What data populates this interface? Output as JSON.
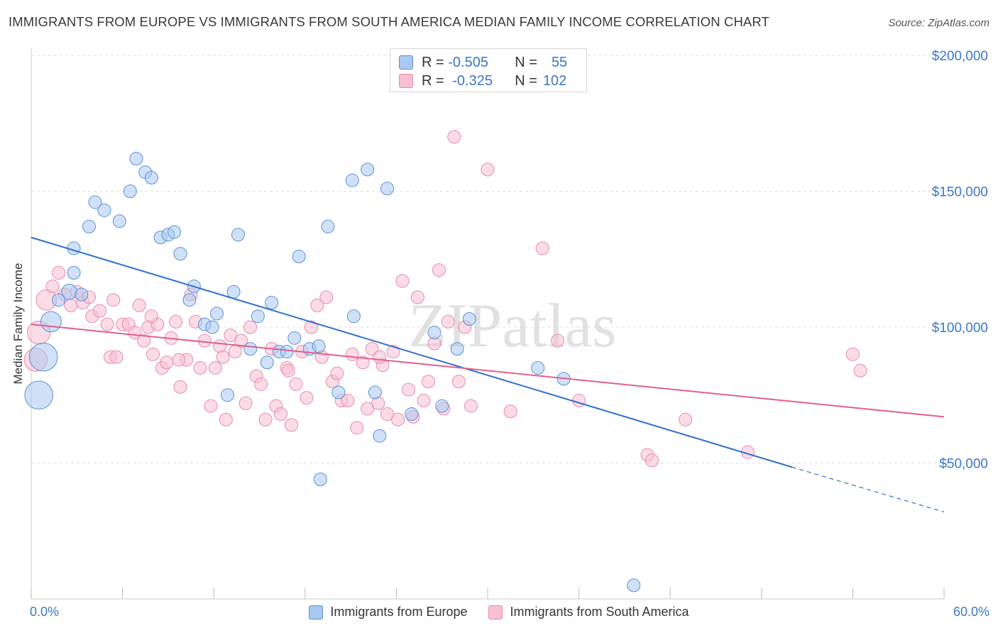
{
  "title": "IMMIGRANTS FROM EUROPE VS IMMIGRANTS FROM SOUTH AMERICA MEDIAN FAMILY INCOME CORRELATION CHART",
  "source": "Source: ZipAtlas.com",
  "watermark": "ZIPatlas",
  "stats": [
    {
      "r_label": "R =",
      "r_value": "-0.505",
      "n_label": "N =",
      "n_value": "55"
    },
    {
      "r_label": "R =",
      "r_value": "-0.325",
      "n_label": "N =",
      "n_value": "102"
    }
  ],
  "colors": {
    "europe_fill": "#aac8f0",
    "europe_stroke": "#5a90d8",
    "europe_line": "#2f6fd0",
    "southamerica_fill": "#f8c0d2",
    "southamerica_stroke": "#e88aa8",
    "southamerica_line": "#e0608e",
    "axis_text": "#3a78c8",
    "grid": "#e0e0e0"
  },
  "chart_data": {
    "type": "scatter",
    "title": "IMMIGRANTS FROM EUROPE VS IMMIGRANTS FROM SOUTH AMERICA MEDIAN FAMILY INCOME CORRELATION CHART",
    "xlabel": "",
    "ylabel": "Median Family Income",
    "xlim": [
      0,
      60
    ],
    "ylim": [
      0,
      210000
    ],
    "x_tick_labels": {
      "min": "0.0%",
      "max": "60.0%"
    },
    "y_ticks": [
      50000,
      100000,
      150000,
      200000
    ],
    "y_tick_labels": [
      "$50,000",
      "$100,000",
      "$150,000",
      "$200,000"
    ],
    "grid": "horizontal dashed",
    "legend_position": "bottom-center",
    "series": [
      {
        "name": "Immigrants from Europe",
        "trend": {
          "x": [
            0,
            50
          ],
          "y": [
            133000,
            48500
          ],
          "dashed_extension": {
            "x": [
              50,
              60
            ],
            "y": [
              48500,
              32000
            ]
          }
        },
        "points": [
          [
            0.5,
            75000,
            2.2
          ],
          [
            0.8,
            89000,
            2.2
          ],
          [
            1.3,
            102000,
            1.6
          ],
          [
            2.5,
            113000,
            1.2
          ],
          [
            2.8,
            120000,
            1.0
          ],
          [
            4.2,
            146000,
            1.0
          ],
          [
            4.8,
            143000,
            1.0
          ],
          [
            3.8,
            137000,
            1.0
          ],
          [
            2.8,
            129000,
            1.0
          ],
          [
            5.8,
            139000,
            1.0
          ],
          [
            6.5,
            150000,
            1.0
          ],
          [
            6.9,
            162000,
            1.0
          ],
          [
            7.5,
            157000,
            1.0
          ],
          [
            7.9,
            155000,
            1.0
          ],
          [
            8.5,
            133000,
            1.0
          ],
          [
            9.0,
            134000,
            1.0
          ],
          [
            9.4,
            135000,
            1.0
          ],
          [
            9.8,
            127000,
            1.0
          ],
          [
            10.7,
            115000,
            1.0
          ],
          [
            10.4,
            110000,
            1.0
          ],
          [
            11.4,
            101000,
            1.0
          ],
          [
            11.9,
            100000,
            1.0
          ],
          [
            12.2,
            105000,
            1.0
          ],
          [
            12.9,
            75000,
            1.0
          ],
          [
            13.3,
            113000,
            1.0
          ],
          [
            13.6,
            134000,
            1.0
          ],
          [
            14.4,
            92000,
            1.0
          ],
          [
            14.9,
            104000,
            1.0
          ],
          [
            15.5,
            87000,
            1.0
          ],
          [
            15.8,
            109000,
            1.0
          ],
          [
            16.3,
            91000,
            1.0
          ],
          [
            16.8,
            91000,
            1.0
          ],
          [
            17.3,
            96000,
            1.0
          ],
          [
            17.6,
            126000,
            1.0
          ],
          [
            18.3,
            92000,
            1.0
          ],
          [
            18.9,
            93000,
            1.0
          ],
          [
            19.5,
            137000,
            1.0
          ],
          [
            19.0,
            44000,
            1.0
          ],
          [
            20.2,
            76000,
            1.0
          ],
          [
            21.1,
            154000,
            1.0
          ],
          [
            21.2,
            104000,
            1.0
          ],
          [
            22.1,
            158000,
            1.0
          ],
          [
            22.6,
            76000,
            1.0
          ],
          [
            22.9,
            60000,
            1.0
          ],
          [
            23.4,
            151000,
            1.0
          ],
          [
            25.0,
            68000,
            1.0
          ],
          [
            26.5,
            98000,
            1.0
          ],
          [
            27.0,
            71000,
            1.0
          ],
          [
            28.0,
            92000,
            1.0
          ],
          [
            28.8,
            103000,
            1.0
          ],
          [
            33.3,
            85000,
            1.0
          ],
          [
            35.0,
            81000,
            1.0
          ],
          [
            39.6,
            5000,
            1.0
          ],
          [
            1.8,
            110000,
            1.0
          ],
          [
            3.3,
            112000,
            1.0
          ]
        ]
      },
      {
        "name": "Immigrants from South America",
        "trend": {
          "x": [
            0,
            60
          ],
          "y": [
            101000,
            67000
          ]
        },
        "points": [
          [
            0.3,
            88000,
            1.8
          ],
          [
            0.5,
            98000,
            1.8
          ],
          [
            1.0,
            110000,
            1.6
          ],
          [
            1.4,
            115000,
            1.0
          ],
          [
            1.8,
            120000,
            1.0
          ],
          [
            2.2,
            112000,
            1.0
          ],
          [
            2.6,
            108000,
            1.0
          ],
          [
            3.0,
            113000,
            1.0
          ],
          [
            3.4,
            109000,
            1.0
          ],
          [
            3.8,
            111000,
            1.0
          ],
          [
            4.0,
            104000,
            1.0
          ],
          [
            4.5,
            106000,
            1.0
          ],
          [
            5.0,
            101000,
            1.0
          ],
          [
            5.2,
            89000,
            1.0
          ],
          [
            5.6,
            89000,
            1.0
          ],
          [
            6.0,
            101000,
            1.0
          ],
          [
            6.4,
            101000,
            1.0
          ],
          [
            6.8,
            98000,
            1.0
          ],
          [
            7.1,
            108000,
            1.0
          ],
          [
            7.4,
            95000,
            1.0
          ],
          [
            7.7,
            100000,
            1.0
          ],
          [
            8.0,
            90000,
            1.0
          ],
          [
            8.3,
            101000,
            1.0
          ],
          [
            8.6,
            85000,
            1.0
          ],
          [
            8.9,
            87000,
            1.0
          ],
          [
            9.2,
            96000,
            1.0
          ],
          [
            9.5,
            102000,
            1.0
          ],
          [
            9.8,
            78000,
            1.0
          ],
          [
            10.2,
            88000,
            1.0
          ],
          [
            10.5,
            112000,
            1.0
          ],
          [
            10.8,
            102000,
            1.0
          ],
          [
            11.1,
            85000,
            1.0
          ],
          [
            11.4,
            95000,
            1.0
          ],
          [
            11.8,
            71000,
            1.0
          ],
          [
            12.1,
            85000,
            1.0
          ],
          [
            12.4,
            93000,
            1.0
          ],
          [
            12.8,
            66000,
            1.0
          ],
          [
            13.1,
            97000,
            1.0
          ],
          [
            13.4,
            91000,
            1.0
          ],
          [
            13.8,
            95000,
            1.0
          ],
          [
            14.1,
            72000,
            1.0
          ],
          [
            14.4,
            100000,
            1.0
          ],
          [
            14.8,
            82000,
            1.0
          ],
          [
            15.1,
            79000,
            1.0
          ],
          [
            15.4,
            66000,
            1.0
          ],
          [
            15.8,
            92000,
            1.0
          ],
          [
            16.1,
            71000,
            1.0
          ],
          [
            16.4,
            68000,
            1.0
          ],
          [
            16.8,
            85000,
            1.0
          ],
          [
            17.1,
            64000,
            1.0
          ],
          [
            17.4,
            79000,
            1.0
          ],
          [
            17.8,
            91000,
            1.0
          ],
          [
            18.1,
            74000,
            1.0
          ],
          [
            18.4,
            100000,
            1.0
          ],
          [
            18.8,
            108000,
            1.0
          ],
          [
            19.1,
            89000,
            1.0
          ],
          [
            19.4,
            111000,
            1.0
          ],
          [
            19.8,
            80000,
            1.0
          ],
          [
            20.1,
            83000,
            1.0
          ],
          [
            20.4,
            73000,
            1.0
          ],
          [
            20.8,
            73000,
            1.0
          ],
          [
            21.1,
            90000,
            1.0
          ],
          [
            21.4,
            63000,
            1.0
          ],
          [
            21.8,
            87000,
            1.0
          ],
          [
            22.1,
            70000,
            1.0
          ],
          [
            22.4,
            92000,
            1.0
          ],
          [
            22.8,
            72000,
            1.0
          ],
          [
            23.1,
            86000,
            1.0
          ],
          [
            23.4,
            68000,
            1.0
          ],
          [
            23.8,
            91000,
            1.0
          ],
          [
            24.1,
            66000,
            1.0
          ],
          [
            24.4,
            117000,
            1.0
          ],
          [
            24.8,
            77000,
            1.0
          ],
          [
            25.1,
            67000,
            1.0
          ],
          [
            25.4,
            111000,
            1.0
          ],
          [
            25.8,
            73000,
            1.0
          ],
          [
            26.1,
            80000,
            1.0
          ],
          [
            26.5,
            94000,
            1.0
          ],
          [
            26.8,
            121000,
            1.0
          ],
          [
            27.1,
            70000,
            1.0
          ],
          [
            27.4,
            102000,
            1.0
          ],
          [
            27.8,
            170000,
            1.0
          ],
          [
            28.1,
            80000,
            1.0
          ],
          [
            28.5,
            100000,
            1.0
          ],
          [
            30.0,
            158000,
            1.0
          ],
          [
            31.5,
            69000,
            1.0
          ],
          [
            33.6,
            129000,
            1.0
          ],
          [
            34.6,
            95000,
            1.0
          ],
          [
            36.0,
            73000,
            1.0
          ],
          [
            40.5,
            53000,
            1.0
          ],
          [
            40.8,
            51000,
            1.0
          ],
          [
            43.0,
            66000,
            1.0
          ],
          [
            47.1,
            54000,
            1.0
          ],
          [
            54.0,
            90000,
            1.0
          ],
          [
            54.5,
            84000,
            1.0
          ],
          [
            28.9,
            71000,
            1.0
          ],
          [
            22.9,
            89000,
            1.0
          ],
          [
            16.9,
            84000,
            1.0
          ],
          [
            9.7,
            88000,
            1.0
          ],
          [
            12.6,
            89000,
            1.0
          ],
          [
            7.9,
            104000,
            1.0
          ],
          [
            5.4,
            110000,
            1.0
          ]
        ]
      }
    ]
  }
}
